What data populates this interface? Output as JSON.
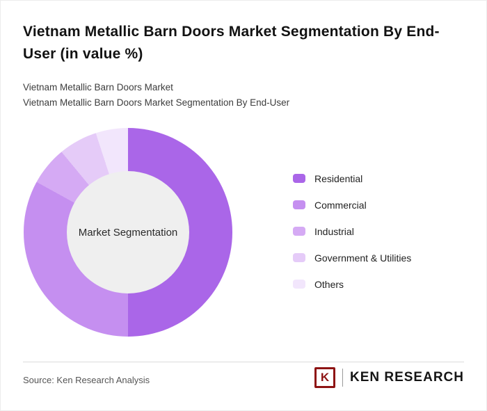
{
  "page": {
    "title": "Vietnam Metallic Barn Doors Market Segmentation By End-User (in value %)",
    "subtitle_line1": "Vietnam Metallic Barn Doors Market",
    "subtitle_line2": "Vietnam Metallic Barn Doors Market Segmentation By End-User"
  },
  "chart_data": {
    "type": "pie",
    "subtype": "donut",
    "title": "Vietnam Metallic Barn Doors Market Segmentation By End-User (in value %)",
    "units": "value %",
    "center_label": "Market Segmentation",
    "inner_circle_color": "#efefef",
    "legend_position": "right",
    "start_angle_deg": 0,
    "direction": "clockwise",
    "segments": [
      {
        "label": "Residential",
        "value": 50,
        "color": "#aa66e8"
      },
      {
        "label": "Commercial",
        "value": 33,
        "color": "#c58ff0"
      },
      {
        "label": "Industrial",
        "value": 6,
        "color": "#d5aaf4"
      },
      {
        "label": "Government & Utilities",
        "value": 6,
        "color": "#e5cbf8"
      },
      {
        "label": "Others",
        "value": 5,
        "color": "#f2e6fc"
      }
    ]
  },
  "footer": {
    "source": "Source: Ken Research Analysis",
    "logo_k": "K",
    "logo_text": "KEN RESEARCH"
  }
}
